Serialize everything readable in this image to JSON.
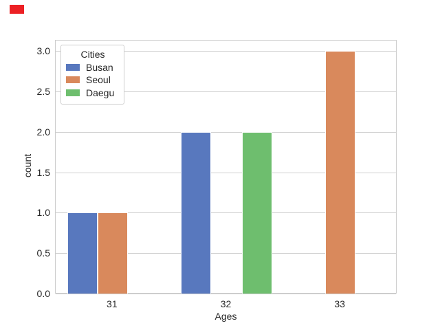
{
  "overlay": {
    "red_marker_color": "#EC2024"
  },
  "chart_data": {
    "type": "bar",
    "title": "",
    "xlabel": "Ages",
    "ylabel": "count",
    "categories": [
      "31",
      "32",
      "33"
    ],
    "series": [
      {
        "name": "Busan",
        "color": "#5878BE",
        "values": [
          1,
          2,
          0
        ]
      },
      {
        "name": "Seoul",
        "color": "#D9895C",
        "values": [
          1,
          0,
          3
        ]
      },
      {
        "name": "Daegu",
        "color": "#6EBE6E",
        "values": [
          0,
          2,
          0
        ]
      }
    ],
    "ylim": [
      0,
      3.14
    ],
    "yticks": [
      0.0,
      0.5,
      1.0,
      1.5,
      2.0,
      2.5,
      3.0
    ],
    "ytick_labels": [
      "0.0",
      "0.5",
      "1.0",
      "1.5",
      "2.0",
      "2.5",
      "3.0"
    ],
    "grid": "horizontal",
    "legend": {
      "title": "Cities",
      "position": "upper-left"
    }
  },
  "colors": {
    "grid": "#CFCFCF",
    "spine": "#CCCCCC",
    "text": "#262626",
    "background": "#FFFFFF"
  }
}
